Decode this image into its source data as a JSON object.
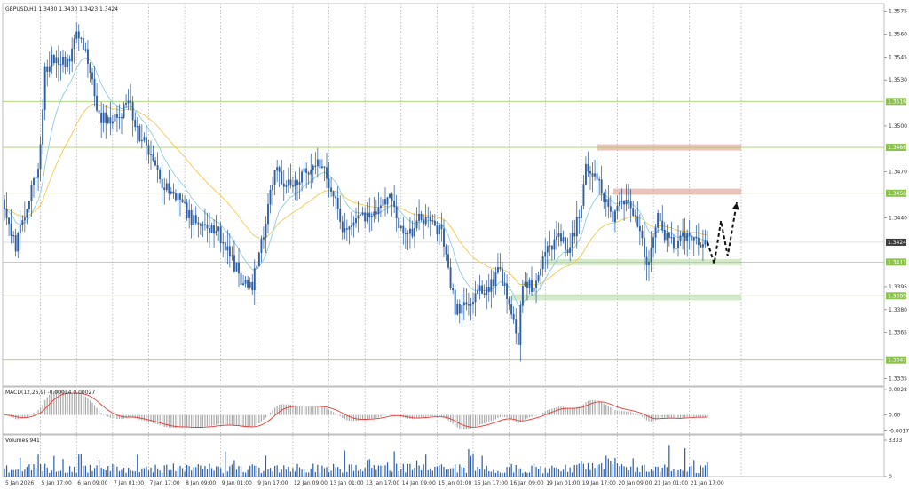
{
  "chart_data": {
    "type": "candlestick",
    "symbol_header": "GBPUSD,H1  1.3430 1.3430 1.3423 1.3424",
    "current_price": 1.3424,
    "current_price_label": "1.3424",
    "ylim": [
      1.333,
      1.358
    ],
    "y_ticks": [
      1.3575,
      1.356,
      1.3545,
      1.353,
      1.35,
      1.347,
      1.344,
      1.3395,
      1.338,
      1.3365,
      1.3335
    ],
    "x_tick_labels": [
      "5 Jan 2026",
      "5 Jan 17:00",
      "6 Jan 09:00",
      "7 Jan 01:00",
      "7 Jan 17:00",
      "8 Jan 09:00",
      "9 Jan 01:00",
      "9 Jan 17:00",
      "12 Jan 09:00",
      "13 Jan 01:00",
      "13 Jan 17:00",
      "14 Jan 09:00",
      "15 Jan 01:00",
      "15 Jan 17:00",
      "16 Jan 09:00",
      "19 Jan 01:00",
      "19 Jan 17:00",
      "20 Jan 09:00",
      "21 Jan 01:00",
      "21 Jan 17:00"
    ],
    "levels": [
      {
        "value": 1.3516,
        "label": "1.3516"
      },
      {
        "value": 1.3486,
        "label": "1.3486"
      },
      {
        "value": 1.3456,
        "label": "1.3456"
      },
      {
        "value": 1.3411,
        "label": "1.3411"
      },
      {
        "value": 1.3389,
        "label": "1.3389"
      },
      {
        "value": 1.3347,
        "label": "1.3347"
      }
    ],
    "resistance_zones": [
      {
        "from": 1.3484,
        "to": 1.3488
      },
      {
        "from": 1.3455,
        "to": 1.3459
      }
    ],
    "support_zones": [
      {
        "from": 1.3409,
        "to": 1.3413
      },
      {
        "from": 1.3386,
        "to": 1.339
      }
    ],
    "price_path": [
      [
        0,
        1.345
      ],
      [
        5,
        1.342
      ],
      [
        10,
        1.345
      ],
      [
        15,
        1.347
      ],
      [
        18,
        1.3535
      ],
      [
        22,
        1.3545
      ],
      [
        28,
        1.354
      ],
      [
        32,
        1.3565
      ],
      [
        37,
        1.3545
      ],
      [
        40,
        1.352
      ],
      [
        43,
        1.3505
      ],
      [
        50,
        1.3505
      ],
      [
        55,
        1.3515
      ],
      [
        60,
        1.3495
      ],
      [
        65,
        1.348
      ],
      [
        70,
        1.346
      ],
      [
        75,
        1.3455
      ],
      [
        80,
        1.3445
      ],
      [
        85,
        1.3435
      ],
      [
        90,
        1.343
      ],
      [
        95,
        1.343
      ],
      [
        100,
        1.3415
      ],
      [
        105,
        1.34
      ],
      [
        110,
        1.3395
      ],
      [
        115,
        1.343
      ],
      [
        120,
        1.347
      ],
      [
        125,
        1.346
      ],
      [
        130,
        1.3465
      ],
      [
        135,
        1.347
      ],
      [
        140,
        1.3475
      ],
      [
        145,
        1.346
      ],
      [
        150,
        1.343
      ],
      [
        155,
        1.344
      ],
      [
        160,
        1.344
      ],
      [
        165,
        1.3445
      ],
      [
        170,
        1.3455
      ],
      [
        175,
        1.3435
      ],
      [
        180,
        1.343
      ],
      [
        185,
        1.344
      ],
      [
        190,
        1.344
      ],
      [
        195,
        1.3425
      ],
      [
        200,
        1.338
      ],
      [
        205,
        1.3385
      ],
      [
        210,
        1.339
      ],
      [
        215,
        1.3395
      ],
      [
        220,
        1.3405
      ],
      [
        225,
        1.338
      ],
      [
        228,
        1.336
      ],
      [
        230,
        1.34
      ],
      [
        235,
        1.3395
      ],
      [
        240,
        1.3415
      ],
      [
        245,
        1.343
      ],
      [
        250,
        1.342
      ],
      [
        255,
        1.344
      ],
      [
        258,
        1.3475
      ],
      [
        262,
        1.347
      ],
      [
        265,
        1.3455
      ],
      [
        270,
        1.344
      ],
      [
        275,
        1.345
      ],
      [
        280,
        1.344
      ],
      [
        285,
        1.341
      ],
      [
        290,
        1.344
      ],
      [
        293,
        1.343
      ],
      [
        298,
        1.342
      ],
      [
        303,
        1.343
      ],
      [
        308,
        1.3425
      ],
      [
        312,
        1.3424
      ]
    ],
    "forecast_path": [
      [
        312,
        1.3424
      ],
      [
        315,
        1.341
      ],
      [
        318,
        1.3438
      ],
      [
        321,
        1.3415
      ],
      [
        325,
        1.345
      ]
    ],
    "macd": {
      "label": "MACD(12,26,9) -0.00014 0.00027",
      "y_ticks": [
        0.0028,
        0.0,
        -0.00174
      ],
      "y_tick_labels": [
        "0.0028",
        "0.00",
        "-0.00174"
      ],
      "ylim": [
        -0.0021,
        0.0031
      ]
    },
    "volumes": {
      "label": "Volumes 941",
      "y_ticks": [
        3333,
        0
      ],
      "y_tick_labels": [
        "3333",
        "0"
      ],
      "ymax": 3333
    }
  }
}
